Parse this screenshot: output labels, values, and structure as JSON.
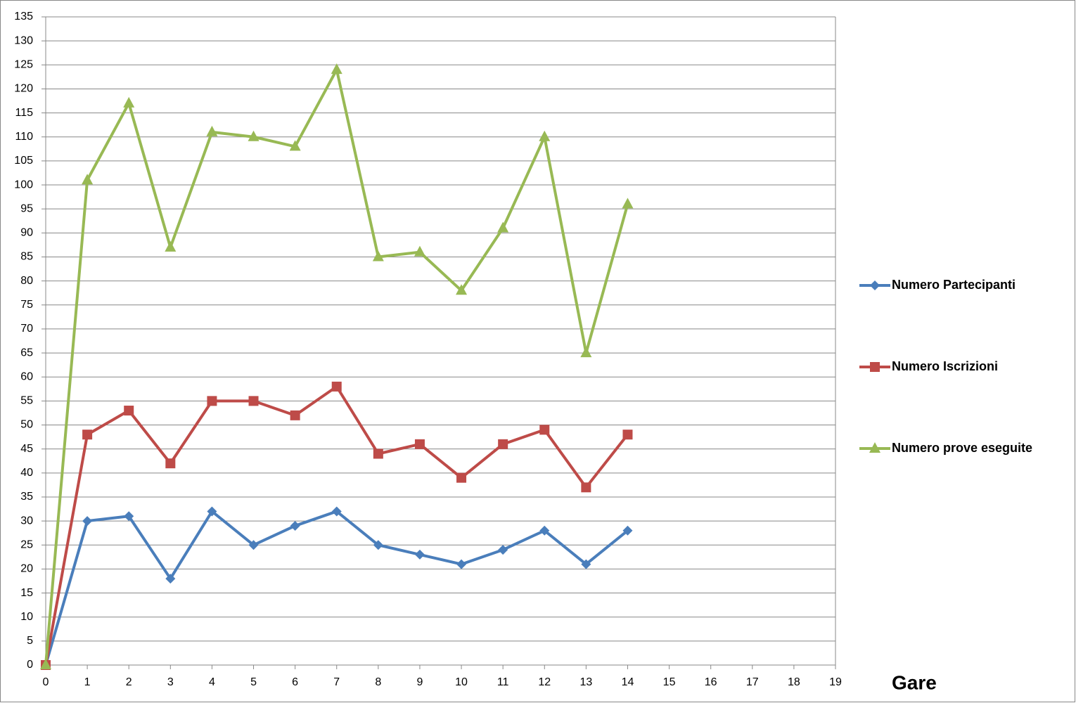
{
  "chart_data": {
    "type": "line",
    "x_label": "Gare",
    "x": [
      0,
      1,
      2,
      3,
      4,
      5,
      6,
      7,
      8,
      9,
      10,
      11,
      12,
      13,
      14
    ],
    "series": [
      {
        "name": "Numero Partecipanti",
        "color": "#4a7ebb",
        "marker": "diamond",
        "values": [
          0,
          30,
          31,
          18,
          32,
          25,
          29,
          32,
          25,
          23,
          21,
          24,
          28,
          21,
          28
        ]
      },
      {
        "name": "Numero Iscrizioni",
        "color": "#be4b48",
        "marker": "square",
        "values": [
          0,
          48,
          53,
          42,
          55,
          55,
          52,
          58,
          44,
          46,
          39,
          46,
          49,
          37,
          48
        ]
      },
      {
        "name": "Numero prove eseguite",
        "color": "#98b954",
        "marker": "triangle",
        "values": [
          0,
          101,
          117,
          87,
          111,
          110,
          108,
          124,
          85,
          86,
          78,
          91,
          110,
          65,
          96
        ]
      }
    ],
    "xlim": [
      0,
      19
    ],
    "xticks": [
      0,
      1,
      2,
      3,
      4,
      5,
      6,
      7,
      8,
      9,
      10,
      11,
      12,
      13,
      14,
      15,
      16,
      17,
      18,
      19
    ],
    "ylim": [
      0,
      135
    ],
    "yticks": [
      0,
      5,
      10,
      15,
      20,
      25,
      30,
      35,
      40,
      45,
      50,
      55,
      60,
      65,
      70,
      75,
      80,
      85,
      90,
      95,
      100,
      105,
      110,
      115,
      120,
      125,
      130,
      135
    ],
    "grid": true,
    "legend": "right"
  }
}
